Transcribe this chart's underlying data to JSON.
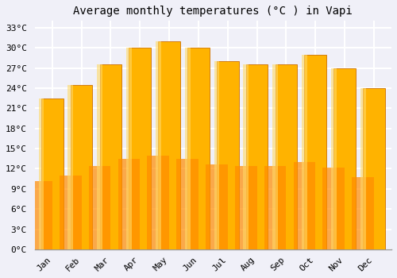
{
  "title": "Average monthly temperatures (°C ) in Vapi",
  "months": [
    "Jan",
    "Feb",
    "Mar",
    "Apr",
    "May",
    "Jun",
    "Jul",
    "Aug",
    "Sep",
    "Oct",
    "Nov",
    "Dec"
  ],
  "values": [
    22.5,
    24.5,
    27.5,
    30.0,
    31.0,
    30.0,
    28.0,
    27.5,
    27.5,
    29.0,
    27.0,
    24.0
  ],
  "bar_color_top": "#FFB300",
  "bar_color_bottom": "#FF8C00",
  "bar_edge_color": "#CC7000",
  "background_color": "#F0F0F8",
  "plot_bg_color": "#F0F0F8",
  "grid_color": "#FFFFFF",
  "ylim": [
    0,
    34
  ],
  "yticks": [
    0,
    3,
    6,
    9,
    12,
    15,
    18,
    21,
    24,
    27,
    30,
    33
  ],
  "ytick_labels": [
    "0°C",
    "3°C",
    "6°C",
    "9°C",
    "12°C",
    "15°C",
    "18°C",
    "21°C",
    "24°C",
    "27°C",
    "30°C",
    "33°C"
  ],
  "title_fontsize": 10,
  "tick_fontsize": 8,
  "font_family": "monospace"
}
